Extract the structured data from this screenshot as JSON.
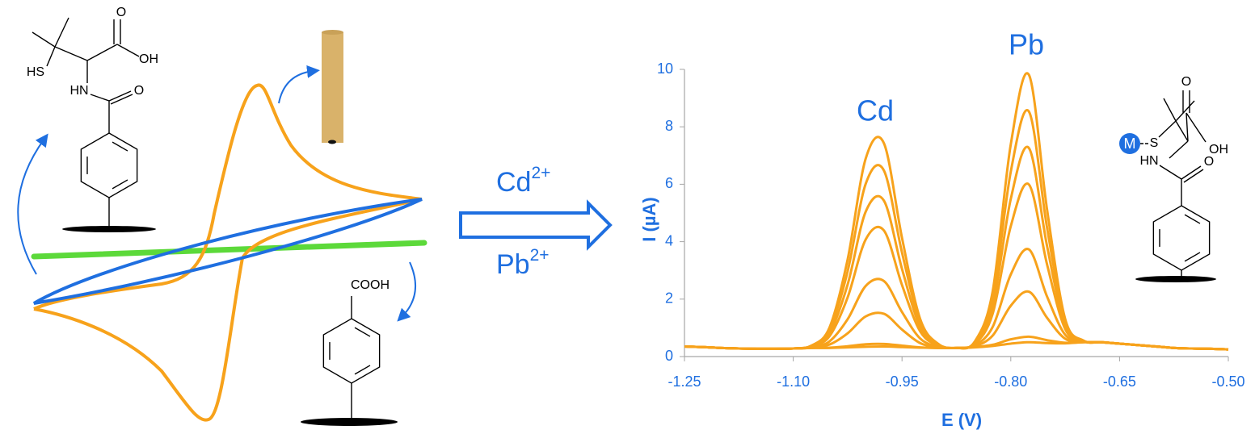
{
  "chart_data": {
    "type": "line",
    "xlabel": "E (V)",
    "ylabel": "I (µA)",
    "annotations": [
      "Cd",
      "Pb"
    ],
    "color": "#f7a21b",
    "x": [
      -1.25,
      -1.225,
      -1.2,
      -1.175,
      -1.15,
      -1.125,
      -1.1,
      -1.075,
      -1.05,
      -1.025,
      -1,
      -0.975,
      -0.95,
      -0.925,
      -0.9,
      -0.875,
      -0.85,
      -0.825,
      -0.8,
      -0.775,
      -0.75,
      -0.725,
      -0.7,
      -0.675,
      -0.65,
      -0.625,
      -0.6,
      -0.575,
      -0.55,
      -0.525,
      -0.5
    ],
    "xlim": [
      -1.25,
      -0.5
    ],
    "xticks": [
      -1.25,
      {
        "value": -1.1,
        "label": "-1.10"
      },
      -0.95,
      {
        "value": -0.8,
        "label": "-0.80"
      },
      -0.65,
      {
        "value": -0.5,
        "label": "-0.50"
      }
    ],
    "ylim": [
      0,
      10
    ],
    "yticks": [
      0,
      2,
      4,
      6,
      8,
      10
    ],
    "series": [
      {
        "values": [
          0.35,
          0.33,
          0.3,
          0.28,
          0.27,
          0.27,
          0.28,
          0.38,
          1.01,
          3.38,
          6.9,
          7.43,
          4.13,
          1.31,
          0.44,
          0.3,
          0.51,
          2.27,
          7.39,
          9.81,
          5.12,
          1.31,
          0.56,
          0.5,
          0.45,
          0.4,
          0.35,
          0.3,
          0.28,
          0.27,
          0.25
        ]
      },
      {
        "values": [
          0.35,
          0.33,
          0.3,
          0.28,
          0.27,
          0.27,
          0.28,
          0.37,
          0.92,
          2.97,
          6.02,
          6.48,
          3.62,
          1.18,
          0.42,
          0.3,
          0.49,
          2.01,
          6.44,
          8.53,
          4.49,
          1.2,
          0.55,
          0.5,
          0.45,
          0.4,
          0.35,
          0.3,
          0.28,
          0.27,
          0.25
        ]
      },
      {
        "values": [
          0.35,
          0.33,
          0.3,
          0.28,
          0.27,
          0.27,
          0.28,
          0.36,
          0.81,
          2.51,
          5.05,
          5.43,
          3.05,
          1.03,
          0.4,
          0.3,
          0.46,
          1.75,
          5.49,
          7.26,
          3.85,
          1.08,
          0.54,
          0.5,
          0.45,
          0.4,
          0.35,
          0.3,
          0.28,
          0.27,
          0.25
        ]
      },
      {
        "values": [
          0.35,
          0.33,
          0.3,
          0.28,
          0.27,
          0.27,
          0.28,
          0.35,
          0.71,
          2.06,
          4.08,
          4.39,
          2.49,
          0.88,
          0.38,
          0.3,
          0.43,
          1.49,
          4.54,
          5.99,
          3.21,
          0.96,
          0.53,
          0.5,
          0.45,
          0.4,
          0.35,
          0.3,
          0.28,
          0.27,
          0.25
        ]
      },
      {
        "values": [
          0.35,
          0.33,
          0.3,
          0.28,
          0.27,
          0.27,
          0.28,
          0.33,
          0.53,
          1.3,
          2.46,
          2.63,
          1.55,
          0.63,
          0.34,
          0.3,
          0.39,
          1.03,
          2.86,
          3.73,
          2.09,
          0.76,
          0.52,
          0.5,
          0.45,
          0.4,
          0.35,
          0.3,
          0.28,
          0.27,
          0.25
        ]
      },
      {
        "values": [
          0.35,
          0.33,
          0.3,
          0.28,
          0.27,
          0.27,
          0.28,
          0.31,
          0.42,
          0.81,
          1.4,
          1.49,
          0.94,
          0.47,
          0.32,
          0.3,
          0.36,
          0.73,
          1.77,
          2.26,
          1.35,
          0.62,
          0.51,
          0.5,
          0.45,
          0.4,
          0.35,
          0.3,
          0.28,
          0.27,
          0.25
        ]
      },
      {
        "values": [
          0.35,
          0.33,
          0.3,
          0.28,
          0.27,
          0.27,
          0.28,
          0.3,
          0.31,
          0.36,
          0.43,
          0.44,
          0.38,
          0.32,
          0.3,
          0.3,
          0.33,
          0.41,
          0.6,
          0.69,
          0.57,
          0.48,
          0.5,
          0.5,
          0.45,
          0.4,
          0.35,
          0.3,
          0.28,
          0.27,
          0.25
        ]
      },
      {
        "values": [
          0.35,
          0.33,
          0.3,
          0.28,
          0.27,
          0.27,
          0.28,
          0.3,
          0.3,
          0.32,
          0.34,
          0.35,
          0.33,
          0.31,
          0.3,
          0.3,
          0.32,
          0.37,
          0.45,
          0.5,
          0.47,
          0.46,
          0.5,
          0.5,
          0.45,
          0.4,
          0.35,
          0.3,
          0.28,
          0.27,
          0.25
        ]
      }
    ]
  },
  "scheme": {
    "molecule_1": {
      "thiol": "HS",
      "amine": "HN",
      "carbonyl_o": "O",
      "acid_o": "O",
      "hydroxyl": "OH"
    },
    "molecule_2": {
      "carboxyl": "COOH"
    },
    "ions": [
      {
        "symbol": "Cd",
        "charge": "2+"
      },
      {
        "symbol": "Pb",
        "charge": "2+"
      }
    ],
    "molecule_3": {
      "metal": "M",
      "thiol": "S",
      "amine": "HN",
      "carbonyl_o": "O",
      "acid_o": "O",
      "hydroxyl": "OH"
    }
  }
}
